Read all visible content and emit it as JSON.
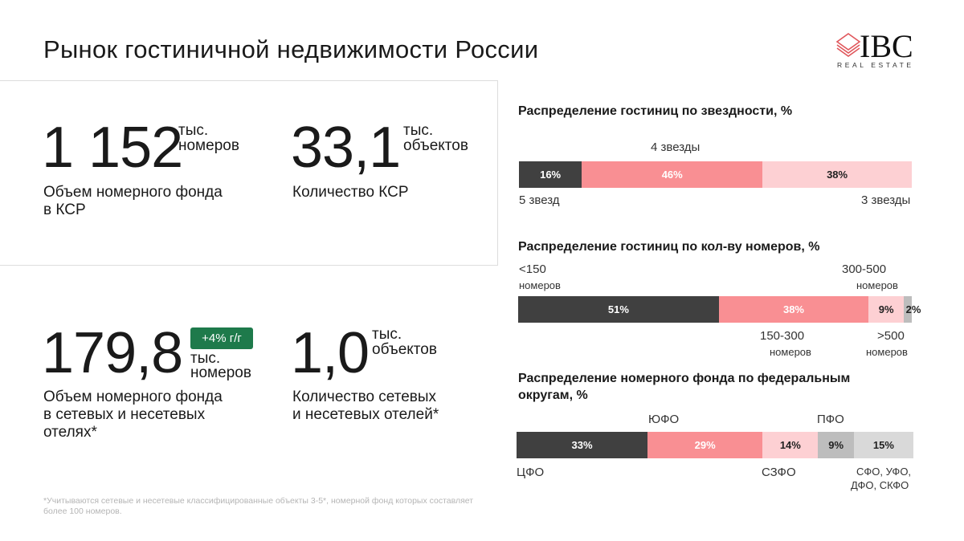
{
  "header": {
    "title": "Рынок гостиничной недвижимости России",
    "logo_main": "IBC",
    "logo_sub": "REAL ESTATE"
  },
  "kpis": [
    {
      "value": "1 152",
      "unit1": "тыс.",
      "unit2": "номеров",
      "desc1": "Объем номерного фонда",
      "desc2": "в КСР"
    },
    {
      "value": "33,1",
      "unit1": "тыс.",
      "unit2": "объектов",
      "desc1": "Количество КСР",
      "desc2": ""
    },
    {
      "value": "179,8",
      "badge": "+4% г/г",
      "unit1": "тыс.",
      "unit2": "номеров",
      "desc1": "Объем номерного фонда",
      "desc2": "в сетевых и несетевых",
      "desc3": "отелях*"
    },
    {
      "value": "1,0",
      "unit1": "тыс.",
      "unit2": "объектов",
      "desc1": "Количество сетевых",
      "desc2": "и несетевых отелей*"
    }
  ],
  "footnote": "*Учитываются сетевые и несетевые классифицированные объекты 3-5*, номерной фонд которых составляет более 100 номеров.",
  "colors": {
    "dark": "#404040",
    "pink": "#f98f93",
    "light_pink": "#fdd0d3",
    "gray": "#bdbdbd",
    "light_gray": "#d9d9d9",
    "badge": "#1e7a4b"
  },
  "chart_data": [
    {
      "type": "bar",
      "title": "Распределение гостиниц по звездности, %",
      "categories": [
        "5 звезд",
        "4 звезды",
        "3 звезды"
      ],
      "values": [
        16,
        46,
        38
      ],
      "labels": [
        "16%",
        "46%",
        "38%"
      ]
    },
    {
      "type": "bar",
      "title": "Распределение гостиниц по кол-ву номеров, %",
      "categories": [
        "<150 номеров",
        "150-300 номеров",
        "300-500 номеров",
        ">500 номеров"
      ],
      "values": [
        51,
        38,
        9,
        2
      ],
      "labels": [
        "51%",
        "38%",
        "9%",
        "2%"
      ],
      "cat_parts": [
        [
          "<150",
          "номеров"
        ],
        [
          "150-300",
          "номеров"
        ],
        [
          "300-500",
          "номеров"
        ],
        [
          ">500",
          "номеров"
        ]
      ]
    },
    {
      "type": "bar",
      "title1": "Распределение номерного фонда по федеральным",
      "title2": "округам, %",
      "categories": [
        "ЦФО",
        "ЮФО",
        "СЗФО",
        "ПФО",
        "СФО, УФО, ДФО, СКФО"
      ],
      "values": [
        33,
        29,
        14,
        9,
        15
      ],
      "labels": [
        "33%",
        "29%",
        "14%",
        "9%",
        "15%"
      ],
      "other_parts": [
        "СФО, УФО,",
        "ДФО, СКФО"
      ]
    }
  ]
}
